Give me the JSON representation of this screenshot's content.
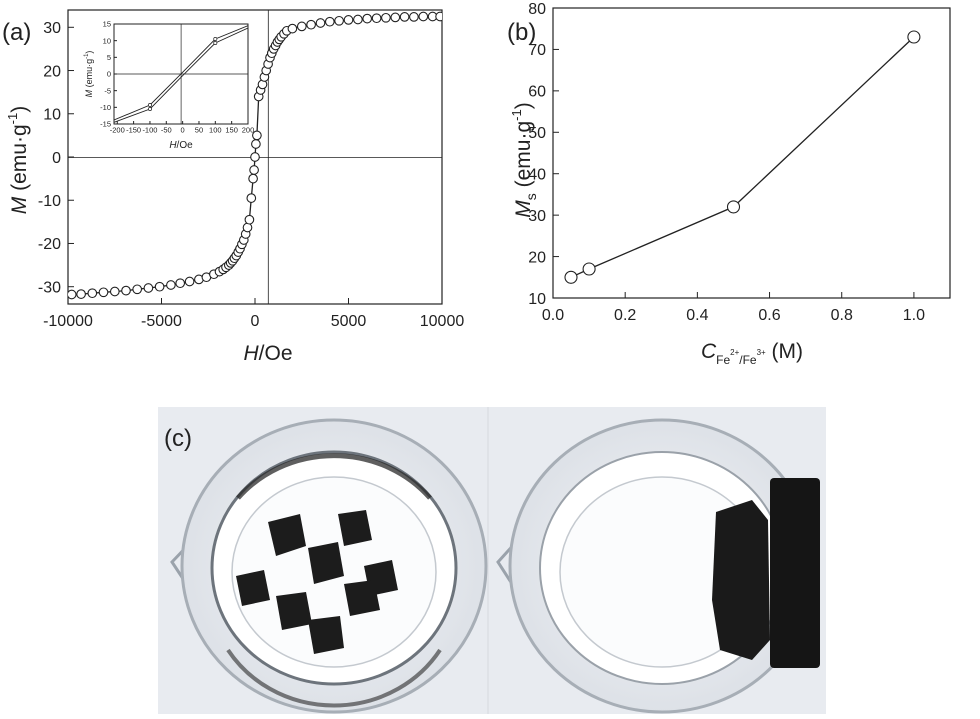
{
  "panel_labels": {
    "a": "(a)",
    "b": "(b)",
    "c": "(c)"
  },
  "colors": {
    "axis": "#222222",
    "marker_fill": "#ffffff",
    "photo_bg": "#e9ecf1",
    "gel": "#1c1c1c"
  },
  "chart_data": [
    {
      "id": "a-main",
      "type": "scatter",
      "xlabel": "H/Oe",
      "ylabel": "M (emu·g-1)",
      "xlim": [
        -10000,
        10000
      ],
      "ylim": [
        -34,
        34
      ],
      "xticks": [
        -10000,
        -5000,
        0,
        5000,
        10000
      ],
      "yticks": [
        -30,
        -20,
        -10,
        0,
        10,
        20,
        30
      ],
      "grid": false,
      "series": [
        {
          "marker": "open-circle",
          "connected": true,
          "x": [
            -9800,
            -9300,
            -8700,
            -8100,
            -7500,
            -6900,
            -6300,
            -5700,
            -5100,
            -4500,
            -4000,
            -3500,
            -3000,
            -2600,
            -2200,
            -1900,
            -1700,
            -1550,
            -1400,
            -1300,
            -1200,
            -1100,
            -1000,
            -900,
            -800,
            -700,
            -600,
            -500,
            -400,
            -300,
            -200,
            -100,
            -50,
            0,
            50,
            100,
            200,
            300,
            400,
            500,
            600,
            700,
            800,
            900,
            1000,
            1100,
            1200,
            1300,
            1400,
            1550,
            1700,
            2000,
            2500,
            3000,
            3500,
            4000,
            4500,
            5000,
            5500,
            6000,
            6500,
            7000,
            7500,
            8000,
            8500,
            9000,
            9500,
            9900
          ],
          "y": [
            -31.8,
            -31.7,
            -31.5,
            -31.3,
            -31.1,
            -30.9,
            -30.6,
            -30.3,
            -30.0,
            -29.6,
            -29.2,
            -28.8,
            -28.3,
            -27.8,
            -27.1,
            -26.5,
            -26.0,
            -25.5,
            -25.0,
            -24.5,
            -24.0,
            -23.4,
            -22.8,
            -22.0,
            -21.2,
            -20.2,
            -19.2,
            -17.8,
            -16.3,
            -14.5,
            -9.5,
            -5.0,
            -3.0,
            0,
            3.0,
            5.0,
            14.0,
            15.5,
            16.8,
            18.5,
            20.0,
            21.5,
            23.0,
            24.0,
            25.0,
            25.8,
            26.6,
            27.2,
            27.8,
            28.5,
            29.2,
            29.7,
            30.2,
            30.6,
            31.0,
            31.3,
            31.5,
            31.7,
            31.8,
            32.0,
            32.1,
            32.2,
            32.3,
            32.4,
            32.4,
            32.5,
            32.5,
            32.5
          ]
        }
      ]
    },
    {
      "id": "a-inset",
      "type": "line",
      "xlabel": "H/Oe",
      "ylabel": "M (emu·g-1)",
      "xlim": [
        -210,
        200
      ],
      "ylim": [
        -15,
        15
      ],
      "xticks": [
        -200,
        -150,
        -100,
        -50,
        0,
        50,
        100,
        150,
        200
      ],
      "yticks": [
        -15,
        -10,
        -5,
        0,
        5,
        10,
        15
      ],
      "grid": false,
      "series": [
        {
          "x": [
            -210,
            -100,
            0,
            100,
            200
          ],
          "y": [
            -14.5,
            -10.5,
            -0.5,
            9.3,
            13.8
          ]
        },
        {
          "x": [
            -210,
            -100,
            0,
            100,
            200
          ],
          "y": [
            -13.8,
            -9.3,
            0.5,
            10.5,
            14.5
          ]
        }
      ]
    },
    {
      "id": "b",
      "type": "line",
      "xlabel": "C Fe2+/Fe3+ (M)",
      "ylabel": "Ms (emu·g-1)",
      "xlim": [
        0.0,
        1.1
      ],
      "ylim": [
        10,
        80
      ],
      "xticks": [
        0.0,
        0.2,
        0.4,
        0.6,
        0.8,
        1.0
      ],
      "yticks": [
        10,
        20,
        30,
        40,
        50,
        60,
        70,
        80
      ],
      "grid": false,
      "series": [
        {
          "marker": "open-circle",
          "x": [
            0.05,
            0.1,
            0.5,
            1.0
          ],
          "y": [
            15,
            17,
            32,
            73
          ]
        }
      ]
    }
  ],
  "axis_text": {
    "a_main_xlabel_italic": "H",
    "a_main_xlabel_rest": "/Oe",
    "a_main_ylabel_italic": "M",
    "a_main_ylabel_rest": " (emu·g",
    "a_main_ylabel_sup": "-1",
    "a_main_ylabel_close": ")",
    "b_xlabel_italic": "C",
    "b_xlabel_sub1": "Fe",
    "b_xlabel_sup1": "2+",
    "b_xlabel_sub2": "/Fe",
    "b_xlabel_sup2": "3+",
    "b_xlabel_rest": " (M)",
    "b_ylabel_italic": "M",
    "b_ylabel_sub": "s",
    "b_ylabel_rest": " (emu·g",
    "b_ylabel_sup": "-1",
    "b_ylabel_close": ")"
  }
}
